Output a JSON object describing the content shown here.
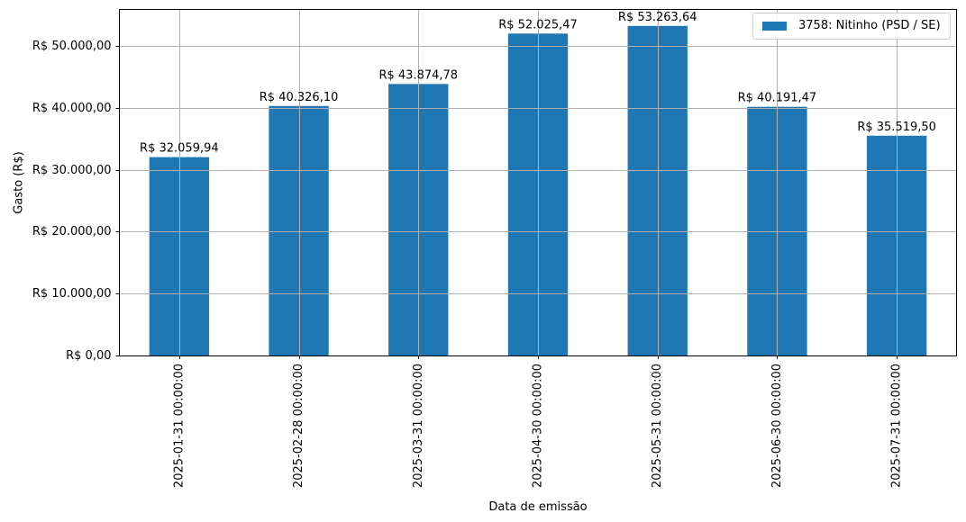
{
  "chart_data": {
    "type": "bar",
    "title": "",
    "xlabel": "Data de emissão",
    "ylabel": "Gasto (R$)",
    "categories": [
      "2025-01-31 00:00:00",
      "2025-02-28 00:00:00",
      "2025-03-31 00:00:00",
      "2025-04-30 00:00:00",
      "2025-05-31 00:00:00",
      "2025-06-30 00:00:00",
      "2025-07-31 00:00:00"
    ],
    "series": [
      {
        "name": "3758: Nitinho (PSD / SE)",
        "color": "#1f77b4",
        "values": [
          32059.94,
          40326.1,
          43874.78,
          52025.47,
          53263.64,
          40191.47,
          35519.5
        ],
        "labels": [
          "R$ 32.059,94",
          "R$ 40.326,10",
          "R$ 43.874,78",
          "R$ 52.025,47",
          "R$ 53.263,64",
          "R$ 40.191,47",
          "R$ 35.519,50"
        ]
      }
    ],
    "yticks": [
      0,
      10000,
      20000,
      30000,
      40000,
      50000
    ],
    "ytick_labels": [
      "R$ 0,00",
      "R$ 10.000,00",
      "R$ 20.000,00",
      "R$ 30.000,00",
      "R$ 40.000,00",
      "R$ 50.000,00"
    ],
    "ylim": [
      0,
      55926
    ],
    "grid": true,
    "legend_position": "upper right",
    "xtick_rotation": 90
  },
  "colors": {
    "bar": "#1f77b4",
    "grid": "#b0b0b0",
    "axis": "#000000"
  }
}
